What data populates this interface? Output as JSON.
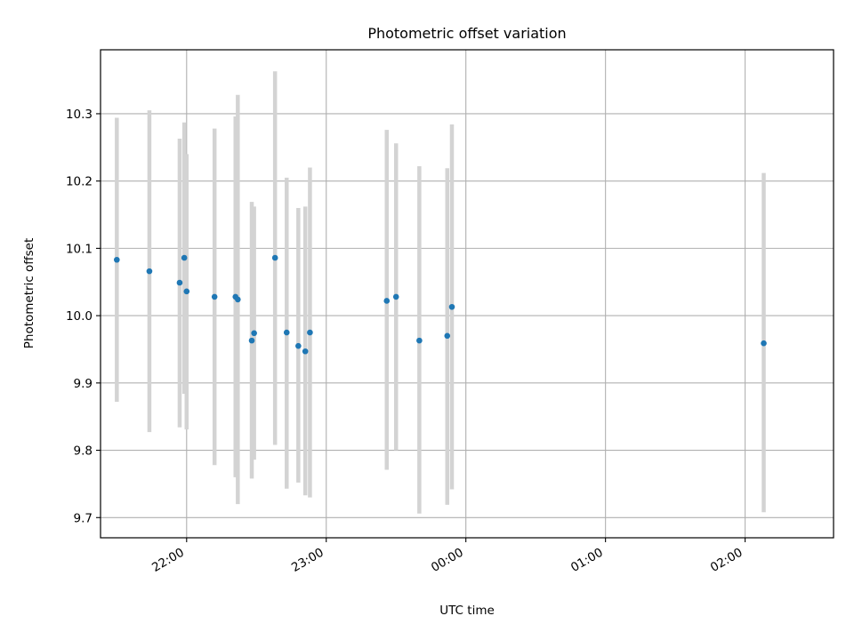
{
  "chart_data": {
    "type": "scatter",
    "title": "Photometric offset variation",
    "xlabel": "UTC time",
    "ylabel": "Photometric offset",
    "x_ticks": [
      "22:00",
      "23:00",
      "00:00",
      "01:00",
      "02:00"
    ],
    "y_ticks": [
      "9.7",
      "9.8",
      "9.9",
      "10.0",
      "10.1",
      "10.2",
      "10.3"
    ],
    "xlim": [
      "21:23",
      "02:38"
    ],
    "ylim": [
      9.67,
      10.395
    ],
    "grid": true,
    "colors": {
      "point": "#1f77b4",
      "errorbar": "#d3d3d3",
      "grid": "#b0b0b0"
    },
    "points": [
      {
        "x": "21:30",
        "y": 10.083,
        "lo": 9.872,
        "hi": 10.294
      },
      {
        "x": "21:44",
        "y": 10.066,
        "lo": 9.827,
        "hi": 10.305
      },
      {
        "x": "21:57",
        "y": 10.049,
        "lo": 9.834,
        "hi": 10.263
      },
      {
        "x": "21:59",
        "y": 10.086,
        "lo": 9.884,
        "hi": 10.287
      },
      {
        "x": "22:00",
        "y": 10.036,
        "lo": 9.831,
        "hi": 10.24
      },
      {
        "x": "22:12",
        "y": 10.028,
        "lo": 9.778,
        "hi": 10.278
      },
      {
        "x": "22:21",
        "y": 10.028,
        "lo": 9.76,
        "hi": 10.296
      },
      {
        "x": "22:22",
        "y": 10.024,
        "lo": 9.72,
        "hi": 10.328
      },
      {
        "x": "22:28",
        "y": 9.963,
        "lo": 9.758,
        "hi": 10.169
      },
      {
        "x": "22:29",
        "y": 9.974,
        "lo": 9.786,
        "hi": 10.162
      },
      {
        "x": "22:38",
        "y": 10.086,
        "lo": 9.808,
        "hi": 10.363
      },
      {
        "x": "22:43",
        "y": 9.975,
        "lo": 9.743,
        "hi": 10.205
      },
      {
        "x": "22:48",
        "y": 9.955,
        "lo": 9.752,
        "hi": 10.16
      },
      {
        "x": "22:51",
        "y": 9.947,
        "lo": 9.733,
        "hi": 10.162
      },
      {
        "x": "22:53",
        "y": 9.975,
        "lo": 9.73,
        "hi": 10.22
      },
      {
        "x": "23:26",
        "y": 10.022,
        "lo": 9.771,
        "hi": 10.276
      },
      {
        "x": "23:30",
        "y": 10.028,
        "lo": 9.8,
        "hi": 10.256
      },
      {
        "x": "23:40",
        "y": 9.963,
        "lo": 9.706,
        "hi": 10.222
      },
      {
        "x": "23:52",
        "y": 9.97,
        "lo": 9.719,
        "hi": 10.219
      },
      {
        "x": "23:54",
        "y": 10.013,
        "lo": 9.742,
        "hi": 10.284
      },
      {
        "x": "02:08",
        "y": 9.959,
        "lo": 9.708,
        "hi": 10.212
      }
    ]
  }
}
